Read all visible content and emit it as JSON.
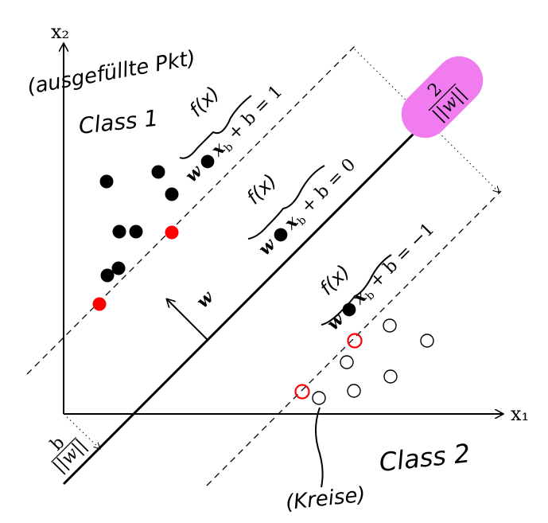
{
  "axes": {
    "x_label": "x₁",
    "y_label": "x₂"
  },
  "lines": {
    "upper": "w • x_b + b = 1",
    "middle": "w • x_b + b = 0",
    "lower": "w • x_b + b = −1",
    "upper_parts": {
      "w": "w",
      "x": "x",
      "sub": "b",
      "rest": " + b = 1"
    },
    "middle_parts": {
      "w": "w",
      "x": "x",
      "sub": "b",
      "rest": " + b = 0"
    },
    "lower_parts": {
      "w": "w",
      "x": "x",
      "sub": "b",
      "rest": " + b = −1"
    }
  },
  "annotations": {
    "filled_points": "(ausgefüllte Pkt)",
    "class1": "Class 1",
    "class2": "Class 2",
    "circles": "(Kreise)",
    "f_of_x": "f(x)",
    "normal_vector": "w",
    "margin_width_num": "2",
    "margin_width_den": "||w||",
    "offset_num": "b",
    "offset_den": "||w||"
  },
  "colors": {
    "support_vector": "#ff0000",
    "class1_point": "#000000",
    "highlight": "#f07cf0"
  }
}
